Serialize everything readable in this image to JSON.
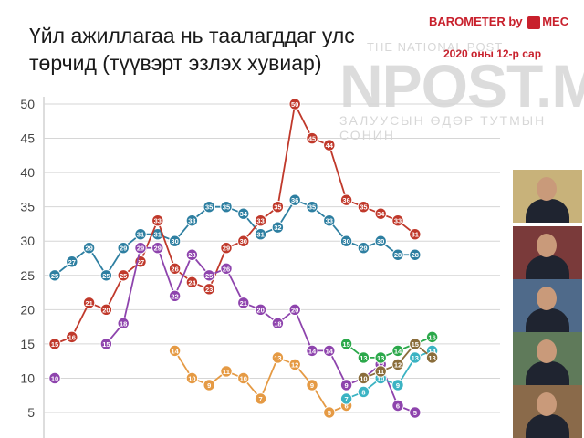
{
  "header": {
    "title_line1": "Үйл ажиллагаа нь таалагддаг улс",
    "title_line2": "төрчид (түүвэрт эзлэх хувиар)",
    "barometer_text": "BAROMETER by",
    "mec_text": "MEC",
    "date_text": "2020 оны 12-р сар"
  },
  "watermark": {
    "top": "THE NATIONAL POST",
    "main": "NPOST.MN",
    "sub": "ЗАЛУУСЫН ӨДӨР ТУТМЫН СОНИН"
  },
  "photos": [
    {
      "name": "portrait-1",
      "bg": "#c8b27a"
    },
    {
      "name": "portrait-2",
      "bg": "#7a3a3a"
    },
    {
      "name": "portrait-3",
      "bg": "#4f6a8a"
    },
    {
      "name": "portrait-4",
      "bg": "#5f7a5a"
    },
    {
      "name": "portrait-5",
      "bg": "#8a6a4a"
    }
  ],
  "chart_data": {
    "type": "line",
    "yticks": [
      5,
      10,
      15,
      20,
      25,
      30,
      35,
      40,
      45,
      50
    ],
    "ylim": [
      3,
      52
    ],
    "n_points": 28,
    "grid": true,
    "series": [
      {
        "color": "#2e7fa1",
        "start": 0,
        "values": [
          25,
          27,
          29,
          25,
          29,
          31,
          31,
          30,
          33,
          35,
          35,
          34,
          31,
          32,
          36,
          35,
          33,
          30,
          29,
          30,
          28,
          28
        ]
      },
      {
        "color": "#c0392b",
        "start": 0,
        "values": [
          15,
          16,
          21,
          20,
          25,
          27,
          33,
          26,
          24,
          23,
          29,
          30,
          33,
          35,
          50,
          45,
          44,
          36,
          35,
          34,
          33,
          31
        ]
      },
      {
        "color": "#8e44ad",
        "start": 0,
        "values": [
          10,
          null,
          null,
          15,
          18,
          29,
          29,
          22,
          28,
          25,
          26,
          21,
          20,
          18,
          20,
          14,
          14,
          9,
          10,
          12,
          6,
          5
        ]
      },
      {
        "color": "#e59a44",
        "start": 7,
        "values": [
          14,
          10,
          9,
          11,
          10,
          7,
          13,
          12,
          9,
          5,
          6
        ]
      },
      {
        "color": "#2ba84a",
        "start": 17,
        "values": [
          15,
          13,
          13,
          14,
          15,
          16
        ]
      },
      {
        "color": "#3bb3c3",
        "start": 17,
        "values": [
          7,
          8,
          10,
          9,
          13,
          14
        ]
      },
      {
        "color": "#8a6d3b",
        "start": 18,
        "values": [
          10,
          11,
          12,
          15,
          13
        ]
      }
    ]
  }
}
